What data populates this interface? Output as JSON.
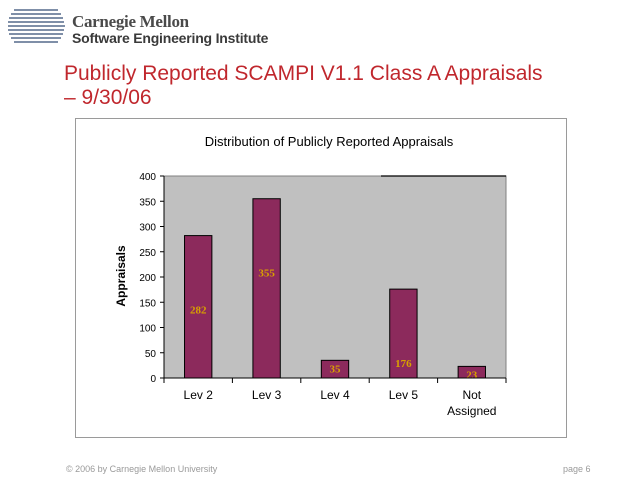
{
  "header": {
    "org_name": "Carnegie Mellon",
    "institute": "Software Engineering Institute"
  },
  "slide": {
    "title_line1": "Publicly Reported SCAMPI V1.1 Class A Appraisals",
    "title_line2": "– 9/30/06"
  },
  "chart_data": {
    "type": "bar",
    "title": "Distribution of Publicly Reported Appraisals",
    "xlabel": "",
    "ylabel": "Appraisals",
    "categories": [
      "Lev 2",
      "Lev 3",
      "Lev 4",
      "Lev 5",
      "Not Assigned"
    ],
    "values": [
      282,
      355,
      35,
      176,
      23
    ],
    "ylim": [
      0,
      400
    ],
    "yticks": [
      0,
      50,
      100,
      150,
      200,
      250,
      300,
      350,
      400
    ],
    "bar_color": "#8c2a5c",
    "plot_background": "#c0c0c0",
    "data_label_color": "#d8a000",
    "grid": false,
    "legend": "none"
  },
  "footer": {
    "copyright": "© 2006 by Carnegie Mellon University",
    "page": "page 6"
  }
}
